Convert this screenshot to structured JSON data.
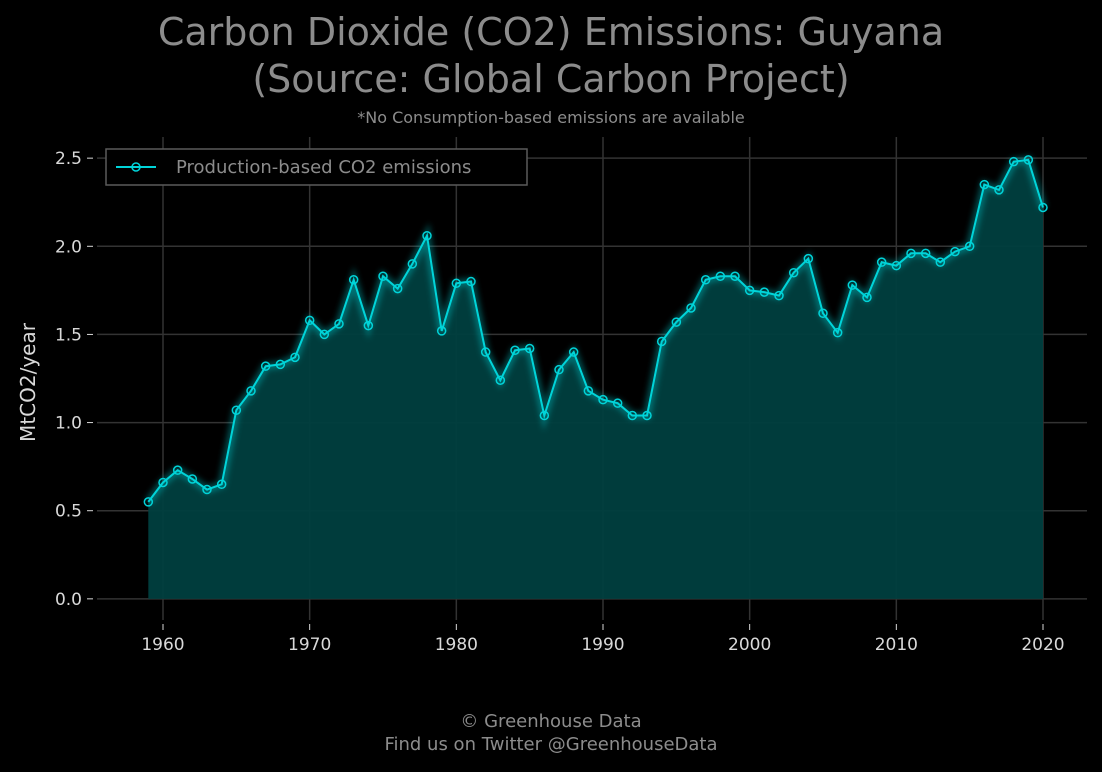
{
  "chart_data": {
    "type": "area",
    "title_line1": "Carbon Dioxide (CO2) Emissions: Guyana",
    "title_line2": "(Source: Global Carbon Project)",
    "subtitle": "*No Consumption-based emissions are available",
    "xlabel": "",
    "ylabel": "MtCO2/year",
    "xlim": [
      1955.5,
      2023
    ],
    "ylim": [
      -0.12,
      2.62
    ],
    "xticks": [
      1960,
      1970,
      1980,
      1990,
      2000,
      2010,
      2020
    ],
    "yticks": [
      0.0,
      0.5,
      1.0,
      1.5,
      2.0,
      2.5
    ],
    "ytick_labels": [
      "0.0",
      "0.5",
      "1.0",
      "1.5",
      "2.0",
      "2.5"
    ],
    "grid": true,
    "legend_position": "top-left",
    "series": [
      {
        "name": "Production-based CO2 emissions",
        "color": "#00d4d9",
        "x": [
          1959,
          1960,
          1961,
          1962,
          1963,
          1964,
          1965,
          1966,
          1967,
          1968,
          1969,
          1970,
          1971,
          1972,
          1973,
          1974,
          1975,
          1976,
          1977,
          1978,
          1979,
          1980,
          1981,
          1982,
          1983,
          1984,
          1985,
          1986,
          1987,
          1988,
          1989,
          1990,
          1991,
          1992,
          1993,
          1994,
          1995,
          1996,
          1997,
          1998,
          1999,
          2000,
          2001,
          2002,
          2003,
          2004,
          2005,
          2006,
          2007,
          2008,
          2009,
          2010,
          2011,
          2012,
          2013,
          2014,
          2015,
          2016,
          2017,
          2018,
          2019,
          2020
        ],
        "y": [
          0.55,
          0.66,
          0.73,
          0.68,
          0.62,
          0.65,
          1.07,
          1.18,
          1.32,
          1.33,
          1.37,
          1.58,
          1.5,
          1.56,
          1.81,
          1.55,
          1.83,
          1.76,
          1.9,
          2.06,
          1.52,
          1.79,
          1.8,
          1.4,
          1.24,
          1.41,
          1.42,
          1.04,
          1.3,
          1.4,
          1.18,
          1.13,
          1.11,
          1.04,
          1.04,
          1.46,
          1.57,
          1.65,
          1.81,
          1.83,
          1.83,
          1.75,
          1.74,
          1.72,
          1.85,
          1.93,
          1.62,
          1.51,
          1.78,
          1.71,
          1.91,
          1.89,
          1.96,
          1.96,
          1.91,
          1.97,
          2.0,
          2.35,
          2.32,
          2.48,
          2.49,
          2.22
        ]
      }
    ]
  },
  "footer": {
    "line1": "© Greenhouse Data",
    "line2": "Find us on Twitter @GreenhouseData"
  },
  "colors": {
    "background": "#000000",
    "grid": "#333333",
    "text": "#8c8c8c",
    "tick_text": "#d9d9d9",
    "fill": "#003f3f",
    "line": "#00d4d9"
  }
}
